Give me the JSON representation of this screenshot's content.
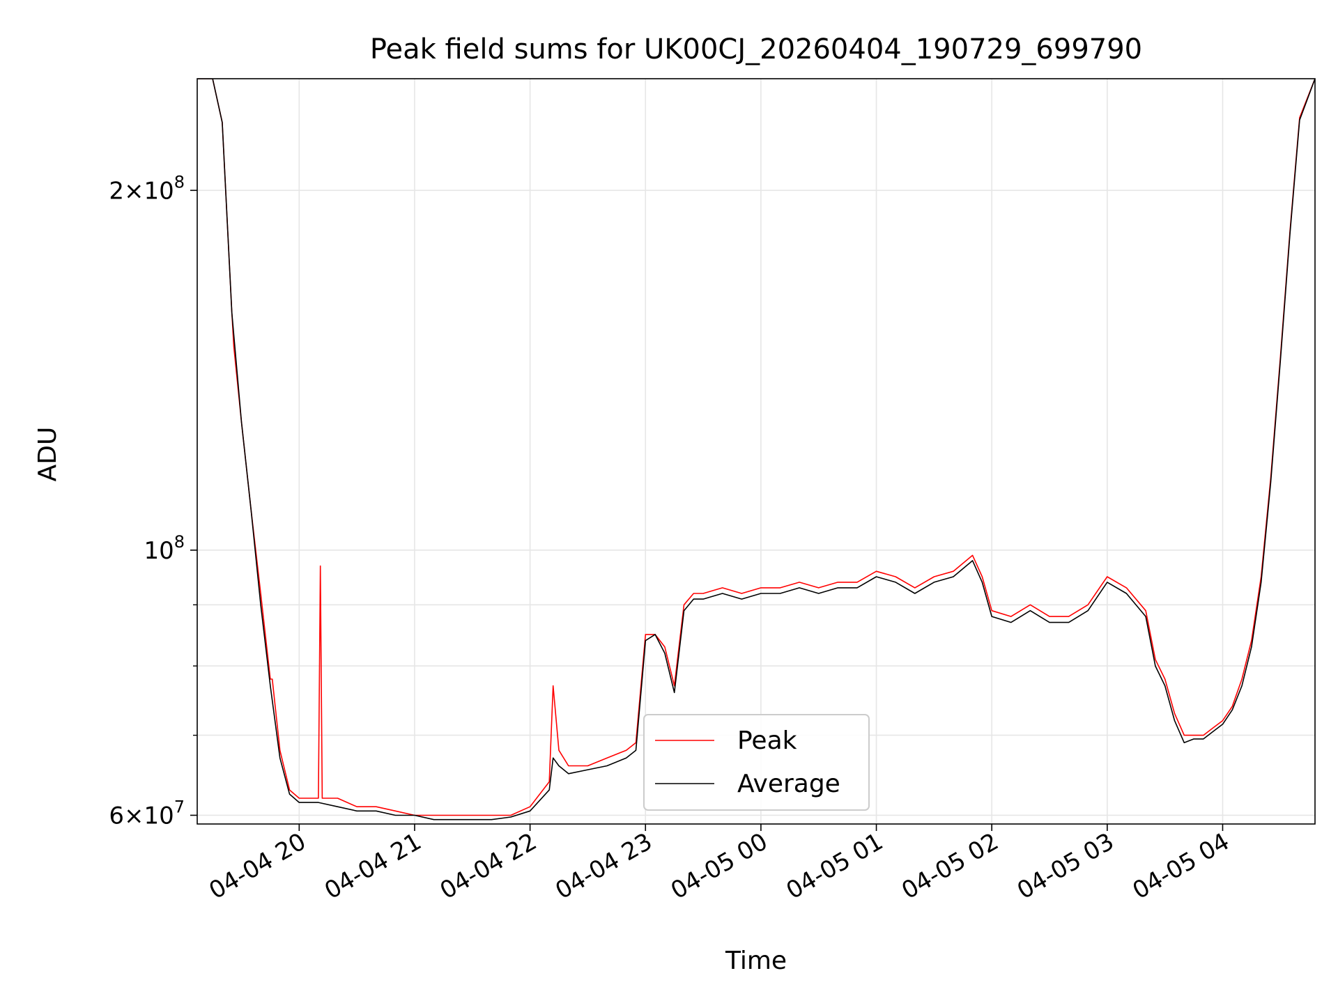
{
  "chart_data": {
    "type": "line",
    "title": "Peak field sums for UK00CJ_20260404_190729_699790",
    "xlabel": "Time",
    "ylabel": "ADU",
    "yscale": "log",
    "xlim": [
      "2026-04-04 19:07",
      "2026-04-05 04:48"
    ],
    "ylim": [
      59000000,
      248000000
    ],
    "grid": true,
    "legend": "lower-center",
    "x_ticks": [
      {
        "t": "2026-04-04 20:00",
        "label": "04-04 20"
      },
      {
        "t": "2026-04-04 21:00",
        "label": "04-04 21"
      },
      {
        "t": "2026-04-04 22:00",
        "label": "04-04 22"
      },
      {
        "t": "2026-04-04 23:00",
        "label": "04-04 23"
      },
      {
        "t": "2026-04-05 00:00",
        "label": "04-05 00"
      },
      {
        "t": "2026-04-05 01:00",
        "label": "04-05 01"
      },
      {
        "t": "2026-04-05 02:00",
        "label": "04-05 02"
      },
      {
        "t": "2026-04-05 03:00",
        "label": "04-05 03"
      },
      {
        "t": "2026-04-05 04:00",
        "label": "04-05 04"
      }
    ],
    "y_ticks": [
      {
        "v": 60000000,
        "base": "6×10",
        "exp": "7"
      },
      {
        "v": 100000000,
        "base": "10",
        "exp": "8"
      },
      {
        "v": 200000000,
        "base": "2×10",
        "exp": "8"
      }
    ],
    "y_minor_ticks": [
      70000000,
      80000000,
      90000000
    ],
    "series": [
      {
        "name": "Peak",
        "color": "#ff0000",
        "x": [
          "2026-04-04 19:07",
          "2026-04-04 19:15",
          "2026-04-04 19:20",
          "2026-04-04 19:25",
          "2026-04-04 19:26",
          "2026-04-04 19:30",
          "2026-04-04 19:35",
          "2026-04-04 19:40",
          "2026-04-04 19:45",
          "2026-04-04 19:46",
          "2026-04-04 19:50",
          "2026-04-04 19:55",
          "2026-04-04 20:00",
          "2026-04-04 20:05",
          "2026-04-04 20:10",
          "2026-04-04 20:11",
          "2026-04-04 20:12",
          "2026-04-04 20:20",
          "2026-04-04 20:30",
          "2026-04-04 20:40",
          "2026-04-04 20:50",
          "2026-04-04 21:00",
          "2026-04-04 21:10",
          "2026-04-04 21:20",
          "2026-04-04 21:30",
          "2026-04-04 21:40",
          "2026-04-04 21:50",
          "2026-04-04 22:00",
          "2026-04-04 22:10",
          "2026-04-04 22:12",
          "2026-04-04 22:15",
          "2026-04-04 22:20",
          "2026-04-04 22:30",
          "2026-04-04 22:40",
          "2026-04-04 22:50",
          "2026-04-04 22:55",
          "2026-04-04 23:00",
          "2026-04-04 23:05",
          "2026-04-04 23:10",
          "2026-04-04 23:15",
          "2026-04-04 23:20",
          "2026-04-04 23:25",
          "2026-04-04 23:30",
          "2026-04-04 23:40",
          "2026-04-04 23:50",
          "2026-04-05 00:00",
          "2026-04-05 00:10",
          "2026-04-05 00:20",
          "2026-04-05 00:30",
          "2026-04-05 00:40",
          "2026-04-05 00:50",
          "2026-04-05 01:00",
          "2026-04-05 01:10",
          "2026-04-05 01:20",
          "2026-04-05 01:30",
          "2026-04-05 01:40",
          "2026-04-05 01:50",
          "2026-04-05 01:55",
          "2026-04-05 02:00",
          "2026-04-05 02:10",
          "2026-04-05 02:20",
          "2026-04-05 02:30",
          "2026-04-05 02:40",
          "2026-04-05 02:50",
          "2026-04-05 03:00",
          "2026-04-05 03:10",
          "2026-04-05 03:20",
          "2026-04-05 03:25",
          "2026-04-05 03:30",
          "2026-04-05 03:35",
          "2026-04-05 03:40",
          "2026-04-05 03:45",
          "2026-04-05 03:50",
          "2026-04-05 03:55",
          "2026-04-05 04:00",
          "2026-04-05 04:05",
          "2026-04-05 04:10",
          "2026-04-05 04:15",
          "2026-04-05 04:20",
          "2026-04-05 04:25",
          "2026-04-05 04:30",
          "2026-04-05 04:35",
          "2026-04-05 04:40",
          "2026-04-05 04:48"
        ],
        "values": [
          248000000,
          248000000,
          228000000,
          158000000,
          148000000,
          128000000,
          108000000,
          92000000,
          78000000,
          78000000,
          68000000,
          63000000,
          62000000,
          62000000,
          62000000,
          97000000,
          62000000,
          62000000,
          61000000,
          61000000,
          60500000,
          60000000,
          60000000,
          60000000,
          60000000,
          60000000,
          60000000,
          61000000,
          64000000,
          77000000,
          68000000,
          66000000,
          66000000,
          67000000,
          68000000,
          69000000,
          85000000,
          85000000,
          83000000,
          77000000,
          90000000,
          92000000,
          92000000,
          93000000,
          92000000,
          93000000,
          93000000,
          94000000,
          93000000,
          94000000,
          94000000,
          96000000,
          95000000,
          93000000,
          95000000,
          96000000,
          99000000,
          95000000,
          89000000,
          88000000,
          90000000,
          88000000,
          88000000,
          90000000,
          95000000,
          93000000,
          89000000,
          81000000,
          78000000,
          73000000,
          70000000,
          70000000,
          70000000,
          71000000,
          72000000,
          74000000,
          78000000,
          84000000,
          95000000,
          115000000,
          145000000,
          185000000,
          230000000,
          248000000
        ]
      },
      {
        "name": "Average",
        "color": "#000000",
        "x": [
          "2026-04-04 19:07",
          "2026-04-04 19:15",
          "2026-04-04 19:20",
          "2026-04-04 19:25",
          "2026-04-04 19:30",
          "2026-04-04 19:35",
          "2026-04-04 19:40",
          "2026-04-04 19:45",
          "2026-04-04 19:50",
          "2026-04-04 19:55",
          "2026-04-04 20:00",
          "2026-04-04 20:05",
          "2026-04-04 20:10",
          "2026-04-04 20:20",
          "2026-04-04 20:30",
          "2026-04-04 20:40",
          "2026-04-04 20:50",
          "2026-04-04 21:00",
          "2026-04-04 21:10",
          "2026-04-04 21:20",
          "2026-04-04 21:30",
          "2026-04-04 21:40",
          "2026-04-04 21:50",
          "2026-04-04 22:00",
          "2026-04-04 22:10",
          "2026-04-04 22:12",
          "2026-04-04 22:15",
          "2026-04-04 22:20",
          "2026-04-04 22:30",
          "2026-04-04 22:40",
          "2026-04-04 22:50",
          "2026-04-04 22:55",
          "2026-04-04 23:00",
          "2026-04-04 23:05",
          "2026-04-04 23:10",
          "2026-04-04 23:15",
          "2026-04-04 23:20",
          "2026-04-04 23:25",
          "2026-04-04 23:30",
          "2026-04-04 23:40",
          "2026-04-04 23:50",
          "2026-04-05 00:00",
          "2026-04-05 00:10",
          "2026-04-05 00:20",
          "2026-04-05 00:30",
          "2026-04-05 00:40",
          "2026-04-05 00:50",
          "2026-04-05 01:00",
          "2026-04-05 01:10",
          "2026-04-05 01:20",
          "2026-04-05 01:30",
          "2026-04-05 01:40",
          "2026-04-05 01:50",
          "2026-04-05 01:55",
          "2026-04-05 02:00",
          "2026-04-05 02:10",
          "2026-04-05 02:20",
          "2026-04-05 02:30",
          "2026-04-05 02:40",
          "2026-04-05 02:50",
          "2026-04-05 03:00",
          "2026-04-05 03:10",
          "2026-04-05 03:20",
          "2026-04-05 03:25",
          "2026-04-05 03:30",
          "2026-04-05 03:35",
          "2026-04-05 03:40",
          "2026-04-05 03:45",
          "2026-04-05 03:50",
          "2026-04-05 03:55",
          "2026-04-05 04:00",
          "2026-04-05 04:05",
          "2026-04-05 04:10",
          "2026-04-05 04:15",
          "2026-04-05 04:20",
          "2026-04-05 04:25",
          "2026-04-05 04:30",
          "2026-04-05 04:35",
          "2026-04-05 04:40",
          "2026-04-05 04:48"
        ],
        "values": [
          248000000,
          248000000,
          228000000,
          158000000,
          128000000,
          108000000,
          90000000,
          77000000,
          67000000,
          62500000,
          61500000,
          61500000,
          61500000,
          61000000,
          60500000,
          60500000,
          60000000,
          60000000,
          59500000,
          59500000,
          59500000,
          59500000,
          59800000,
          60500000,
          63000000,
          67000000,
          66000000,
          65000000,
          65500000,
          66000000,
          67000000,
          68000000,
          84000000,
          85000000,
          82000000,
          76000000,
          89000000,
          91000000,
          91000000,
          92000000,
          91000000,
          92000000,
          92000000,
          93000000,
          92000000,
          93000000,
          93000000,
          95000000,
          94000000,
          92000000,
          94000000,
          95000000,
          98000000,
          94000000,
          88000000,
          87000000,
          89000000,
          87000000,
          87000000,
          89000000,
          94000000,
          92000000,
          88000000,
          80000000,
          77000000,
          72000000,
          69000000,
          69500000,
          69500000,
          70500000,
          71500000,
          73500000,
          77000000,
          83000000,
          94000000,
          114000000,
          144000000,
          184000000,
          229000000,
          248000000
        ]
      }
    ]
  }
}
